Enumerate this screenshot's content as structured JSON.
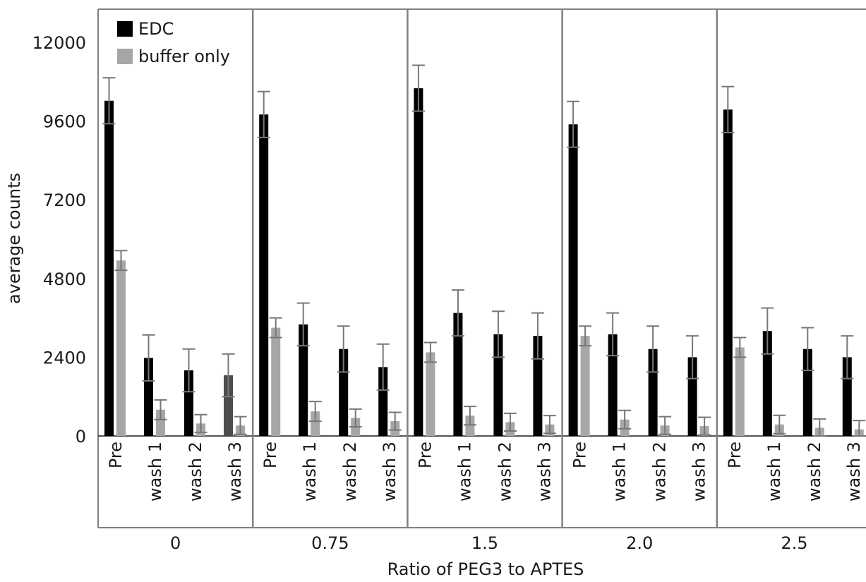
{
  "chart_data": {
    "type": "bar",
    "ylabel": "average counts",
    "xlabel": "Ratio of PEG3 to APTES",
    "ylim": [
      0,
      12000
    ],
    "yticks": [
      0,
      2400,
      4800,
      7200,
      9600,
      12000
    ],
    "ytick_labels": [
      "0",
      "2400",
      "4800",
      "7200",
      "9600",
      "12000"
    ],
    "categories": [
      "Pre",
      "wash 1",
      "wash 2",
      "wash 3"
    ],
    "groups": [
      "0",
      "0.75",
      "1.5",
      "2.0",
      "2.5"
    ],
    "legend_position": "top-left",
    "grid": false,
    "series": [
      {
        "name": "EDC",
        "color": "#000000",
        "values": [
          [
            10220,
            2380,
            2000,
            1850
          ],
          [
            9800,
            3400,
            2650,
            2100
          ],
          [
            10600,
            3750,
            3100,
            3050
          ],
          [
            9500,
            3100,
            2650,
            2400
          ],
          [
            9950,
            3200,
            2650,
            2400
          ]
        ],
        "errors": [
          [
            700,
            700,
            650,
            650
          ],
          [
            700,
            650,
            700,
            700
          ],
          [
            700,
            700,
            700,
            700
          ],
          [
            700,
            650,
            700,
            650
          ],
          [
            700,
            700,
            650,
            650
          ]
        ]
      },
      {
        "name": "buffer only",
        "color": "#a6a6a6",
        "values": [
          [
            5350,
            800,
            380,
            320
          ],
          [
            3300,
            750,
            550,
            450
          ],
          [
            2550,
            620,
            420,
            350
          ],
          [
            3050,
            500,
            320,
            300
          ],
          [
            2700,
            350,
            250,
            200
          ]
        ],
        "errors": [
          [
            300,
            300,
            270,
            270
          ],
          [
            300,
            300,
            270,
            270
          ],
          [
            300,
            280,
            270,
            270
          ],
          [
            300,
            280,
            270,
            270
          ],
          [
            300,
            280,
            270,
            270
          ]
        ]
      }
    ],
    "wash3_group0_color": "#4d4d4d"
  }
}
